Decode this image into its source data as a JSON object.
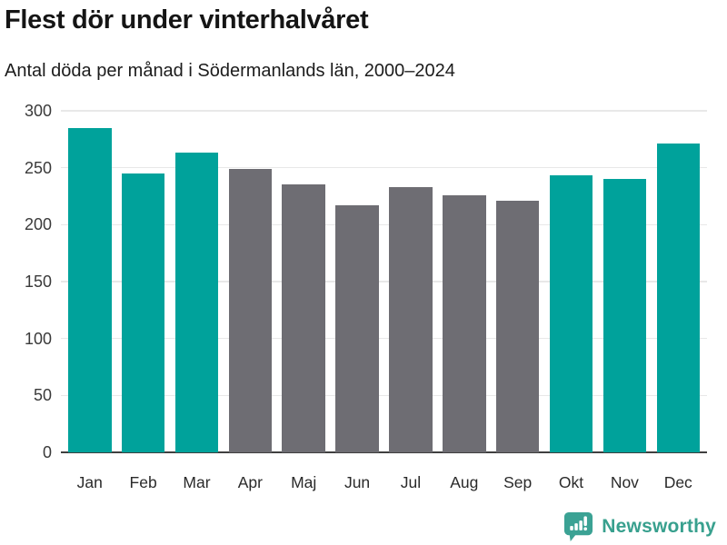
{
  "title": "Flest dör under vinterhalvåret",
  "subtitle": "Antal döda per månad i Södermanlands län, 2000–2024",
  "chart_data": {
    "type": "bar",
    "title": "Flest dör under vinterhalvåret",
    "subtitle": "Antal döda per månad i Södermanlands län, 2000–2024",
    "categories": [
      "Jan",
      "Feb",
      "Mar",
      "Apr",
      "Maj",
      "Jun",
      "Jul",
      "Aug",
      "Sep",
      "Okt",
      "Nov",
      "Dec"
    ],
    "values": [
      285,
      245,
      263,
      249,
      235,
      217,
      233,
      226,
      221,
      243,
      240,
      271
    ],
    "bar_colors": [
      "#00a29b",
      "#00a29b",
      "#00a29b",
      "#6e6d73",
      "#6e6d73",
      "#6e6d73",
      "#6e6d73",
      "#6e6d73",
      "#6e6d73",
      "#00a29b",
      "#00a29b",
      "#00a29b"
    ],
    "xlabel": "",
    "ylabel": "",
    "ylim": [
      0,
      300
    ],
    "yticks": [
      0,
      50,
      100,
      150,
      200,
      250,
      300
    ],
    "grid": true,
    "legend": false
  },
  "colors": {
    "winter_bar": "#00a29b",
    "summer_bar": "#6e6d73",
    "gridline": "#e8e8e8",
    "axis_line": "#3f3f3f",
    "logo": "#3ba294",
    "logo_text": "#38a08e"
  },
  "footer": {
    "brand": "Newsworthy"
  }
}
